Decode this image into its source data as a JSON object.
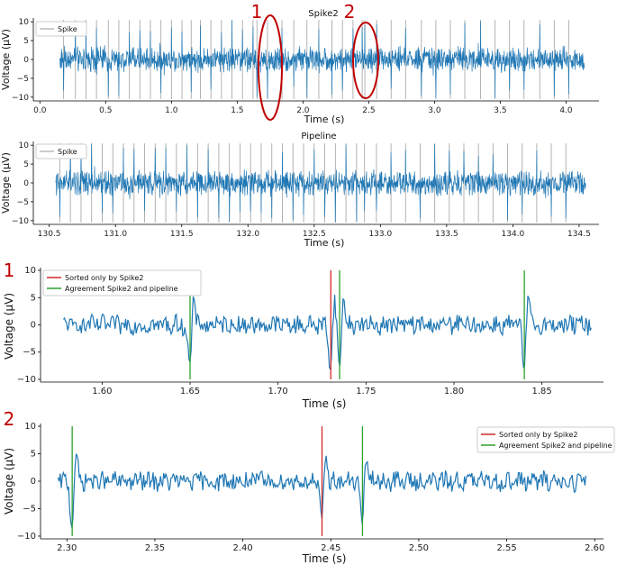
{
  "colors": {
    "signal": "#1f77b4",
    "spike": "#aaaaaa",
    "spike2_only": "#d62728",
    "agreement": "#2ca02c",
    "annotation": "#c00000"
  },
  "chart_data": [
    {
      "type": "line",
      "title": "Spike2",
      "xlabel": "Time (s)",
      "ylabel": "Voltage (μV)",
      "xlim": [
        -0.05,
        4.25
      ],
      "ylim": [
        -11,
        11
      ],
      "xticks": [
        "0.0",
        "0.5",
        "1.0",
        "1.5",
        "2.0",
        "2.5",
        "3.0",
        "3.5",
        "4.0"
      ],
      "yticks": [
        "10",
        "5",
        "0",
        "−5",
        "−10"
      ],
      "signal_range": [
        0.15,
        4.14
      ],
      "noise_amplitude": 2.5,
      "legend": [
        "Spike"
      ],
      "annotations": [
        {
          "label": "1",
          "center_time": 1.75
        },
        {
          "label": "2",
          "center_time": 2.45
        }
      ],
      "spike_times": [
        0.18,
        0.27,
        0.35,
        0.43,
        0.52,
        0.6,
        0.68,
        0.76,
        0.84,
        0.92,
        1.0,
        1.08,
        1.15,
        1.22,
        1.3,
        1.38,
        1.46,
        1.54,
        1.62,
        1.65,
        1.73,
        1.84,
        1.93,
        2.03,
        2.12,
        2.22,
        2.3,
        2.38,
        2.45,
        2.47,
        2.56,
        2.67,
        2.78,
        2.9,
        3.01,
        3.12,
        3.23,
        3.35,
        3.46,
        3.57,
        3.68,
        3.8,
        3.91,
        4.02
      ]
    },
    {
      "type": "line",
      "title": "Pipeline",
      "xlabel": "Time (s)",
      "ylabel": "Voltage (μV)",
      "xlim": [
        130.38,
        134.65
      ],
      "ylim": [
        -11,
        11
      ],
      "xticks": [
        "130.5",
        "131.0",
        "131.5",
        "132.0",
        "132.5",
        "133.0",
        "133.5",
        "134.0",
        "134.5"
      ],
      "yticks": [
        "10",
        "5",
        "0",
        "−5",
        "−10"
      ],
      "signal_range": [
        130.55,
        134.55
      ],
      "noise_amplitude": 2.5,
      "legend": [
        "Spike"
      ],
      "spike_times": [
        130.58,
        130.66,
        130.74,
        130.82,
        130.9,
        130.98,
        131.06,
        131.14,
        131.22,
        131.3,
        131.38,
        131.46,
        131.54,
        131.62,
        131.7,
        131.78,
        131.86,
        131.94,
        132.02,
        132.1,
        132.18,
        132.26,
        132.34,
        132.42,
        132.5,
        132.58,
        132.66,
        132.74,
        132.82,
        132.88,
        132.97,
        133.08,
        133.19,
        133.3,
        133.41,
        133.52,
        133.63,
        133.74,
        133.85,
        133.96,
        134.07,
        134.18,
        134.29,
        134.4
      ]
    },
    {
      "type": "line",
      "panel_label": "1",
      "xlabel": "Time (s)",
      "ylabel": "Voltage (μV)",
      "xlim": [
        1.565,
        1.885
      ],
      "ylim": [
        -10.5,
        10.5
      ],
      "xticks": [
        "1.60",
        "1.65",
        "1.70",
        "1.75",
        "1.80",
        "1.85"
      ],
      "yticks": [
        "10",
        "5",
        "0",
        "−5",
        "−10"
      ],
      "signal_range": [
        1.578,
        1.878
      ],
      "noise_amplitude": 1.6,
      "legend": [
        "Sorted only by Spike2",
        "Agreement Spike2 and pipeline"
      ],
      "legend_position": "top-left",
      "sorted_only_by_spike2": [
        1.73
      ],
      "agreement": [
        1.65,
        1.735,
        1.84
      ],
      "spike_events": [
        1.65,
        1.73,
        1.735,
        1.84
      ]
    },
    {
      "type": "line",
      "panel_label": "2",
      "xlabel": "Time (s)",
      "ylabel": "Voltage (μV)",
      "xlim": [
        2.285,
        2.605
      ],
      "ylim": [
        -10.5,
        10.5
      ],
      "xticks": [
        "2.30",
        "2.35",
        "2.40",
        "2.45",
        "2.50",
        "2.55",
        "2.60"
      ],
      "yticks": [
        "10",
        "5",
        "0",
        "−5",
        "−10"
      ],
      "signal_range": [
        2.295,
        2.595
      ],
      "noise_amplitude": 1.6,
      "legend": [
        "Sorted only by Spike2",
        "Agreement Spike2 and pipeline"
      ],
      "legend_position": "top-right",
      "sorted_only_by_spike2": [
        2.445
      ],
      "agreement": [
        2.303,
        2.468
      ],
      "spike_events": [
        2.303,
        2.445,
        2.468
      ]
    }
  ]
}
